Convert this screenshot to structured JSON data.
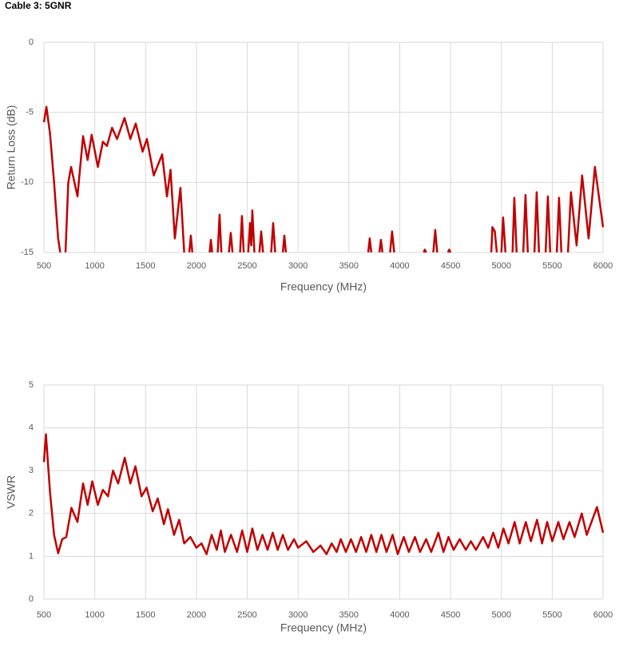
{
  "title": "Cable 3: 5GNR",
  "chart_data": [
    {
      "type": "line",
      "xlabel": "Frequency (MHz)",
      "ylabel": "Return Loss (dB)",
      "xlim": [
        500,
        6000
      ],
      "xticks": [
        500,
        1000,
        1500,
        2000,
        2500,
        3000,
        3500,
        4000,
        4500,
        5000,
        5500,
        6000
      ],
      "ylim": [
        -15,
        0
      ],
      "yticks": [
        0,
        -5,
        -10,
        -15
      ],
      "grid": true,
      "x": [
        500,
        524,
        560,
        600,
        640,
        660,
        680,
        712,
        740,
        767,
        830,
        885,
        930,
        970,
        1030,
        1080,
        1120,
        1170,
        1220,
        1293,
        1350,
        1403,
        1470,
        1513,
        1580,
        1663,
        1710,
        1745,
        1788,
        1843,
        1880,
        1900,
        1930,
        1945,
        1960,
        2000,
        2130,
        2142,
        2155,
        2180,
        2210,
        2228,
        2245,
        2280,
        2320,
        2338,
        2355,
        2400,
        2430,
        2448,
        2465,
        2490,
        2510,
        2527,
        2540,
        2550,
        2570,
        2600,
        2620,
        2637,
        2655,
        2700,
        2735,
        2755,
        2775,
        2820,
        2850,
        2865,
        2880,
        3300,
        3690,
        3705,
        3720,
        3760,
        3800,
        3815,
        3830,
        3870,
        3905,
        3925,
        3945,
        4100,
        4235,
        4247,
        4260,
        4300,
        4330,
        4349,
        4368,
        4420,
        4475,
        4487,
        4500,
        4700,
        4900,
        4912,
        4935,
        4955,
        4980,
        5000,
        5017,
        5040,
        5080,
        5110,
        5127,
        5150,
        5190,
        5215,
        5237,
        5260,
        5300,
        5325,
        5347,
        5370,
        5410,
        5435,
        5457,
        5480,
        5520,
        5545,
        5567,
        5590,
        5630,
        5655,
        5684,
        5740,
        5794,
        5858,
        5920,
        6000
      ],
      "series": [
        {
          "name": "Return Loss",
          "color": "#c00000",
          "values": [
            -5.7,
            -4.6,
            -6.5,
            -10,
            -14,
            -15,
            null,
            -15,
            -10,
            -8.9,
            -11,
            -6.7,
            -8.4,
            -6.6,
            -8.9,
            -7.1,
            -7.4,
            -6.1,
            -6.9,
            -5.4,
            -6.9,
            -5.8,
            -7.8,
            -6.9,
            -9.5,
            -8.0,
            -11.0,
            -9.1,
            -14.0,
            -10.4,
            -15,
            null,
            -15,
            -13.8,
            -15,
            null,
            -15,
            -14.1,
            -15,
            null,
            -15,
            -12.3,
            -15,
            null,
            -15,
            -13.6,
            -15,
            null,
            -15,
            -12.4,
            -15,
            null,
            -15,
            -12.9,
            -14.5,
            -12.0,
            -15,
            null,
            -15,
            -13.5,
            -15,
            null,
            -15,
            -12.9,
            -15,
            null,
            -15,
            -13.8,
            -15,
            null,
            -15,
            -14.0,
            -15,
            null,
            -15,
            -14.1,
            -15,
            null,
            -15,
            -13.5,
            -15,
            null,
            -15,
            -14.8,
            -15,
            null,
            -15,
            -13.4,
            -15,
            null,
            -15,
            -14.8,
            -15,
            null,
            -15,
            -13.2,
            -13.5,
            -15,
            null,
            -15,
            -12.5,
            -15,
            null,
            -15,
            -11.1,
            -15,
            null,
            -15,
            -10.9,
            -15,
            null,
            -15,
            -10.7,
            -15,
            null,
            -15,
            -11.0,
            -15,
            null,
            -15,
            -11.1,
            -15,
            null,
            -15,
            -10.7,
            -14.5,
            -9.5,
            -14.0,
            -8.9,
            -13.2
          ]
        }
      ]
    },
    {
      "type": "line",
      "xlabel": "Frequency (MHz)",
      "ylabel": "VSWR",
      "xlim": [
        500,
        6000
      ],
      "xticks": [
        500,
        1000,
        1500,
        2000,
        2500,
        3000,
        3500,
        4000,
        4500,
        5000,
        5500,
        6000
      ],
      "ylim": [
        0,
        5
      ],
      "yticks": [
        0,
        1,
        2,
        3,
        4,
        5
      ],
      "grid": true,
      "x": [
        500,
        520,
        560,
        600,
        640,
        680,
        720,
        770,
        830,
        885,
        930,
        975,
        1030,
        1080,
        1130,
        1180,
        1230,
        1295,
        1350,
        1400,
        1460,
        1510,
        1570,
        1620,
        1680,
        1720,
        1780,
        1830,
        1880,
        1940,
        2000,
        2050,
        2100,
        2150,
        2200,
        2240,
        2280,
        2340,
        2400,
        2450,
        2500,
        2550,
        2600,
        2650,
        2700,
        2750,
        2800,
        2850,
        2900,
        2960,
        3000,
        3080,
        3150,
        3220,
        3280,
        3330,
        3380,
        3420,
        3470,
        3520,
        3570,
        3620,
        3670,
        3720,
        3770,
        3820,
        3870,
        3930,
        3980,
        4040,
        4090,
        4150,
        4200,
        4260,
        4310,
        4380,
        4430,
        4480,
        4530,
        4590,
        4650,
        4700,
        4750,
        4820,
        4870,
        4920,
        4970,
        5020,
        5070,
        5130,
        5180,
        5240,
        5290,
        5350,
        5400,
        5450,
        5500,
        5560,
        5610,
        5670,
        5720,
        5790,
        5840,
        5940,
        6000
      ],
      "series": [
        {
          "name": "VSWR",
          "color": "#c00000",
          "values": [
            3.2,
            3.85,
            2.5,
            1.5,
            1.07,
            1.4,
            1.45,
            2.13,
            1.8,
            2.7,
            2.2,
            2.75,
            2.2,
            2.55,
            2.4,
            3.0,
            2.7,
            3.3,
            2.7,
            3.1,
            2.4,
            2.6,
            2.05,
            2.35,
            1.75,
            2.1,
            1.5,
            1.85,
            1.3,
            1.45,
            1.2,
            1.3,
            1.05,
            1.5,
            1.15,
            1.6,
            1.1,
            1.5,
            1.1,
            1.6,
            1.1,
            1.65,
            1.15,
            1.5,
            1.15,
            1.55,
            1.15,
            1.5,
            1.15,
            1.4,
            1.2,
            1.35,
            1.1,
            1.25,
            1.05,
            1.3,
            1.1,
            1.4,
            1.1,
            1.4,
            1.1,
            1.45,
            1.1,
            1.5,
            1.1,
            1.5,
            1.1,
            1.5,
            1.05,
            1.45,
            1.1,
            1.45,
            1.1,
            1.4,
            1.1,
            1.55,
            1.1,
            1.45,
            1.15,
            1.4,
            1.15,
            1.35,
            1.15,
            1.45,
            1.2,
            1.55,
            1.2,
            1.65,
            1.3,
            1.8,
            1.3,
            1.8,
            1.35,
            1.85,
            1.3,
            1.8,
            1.35,
            1.8,
            1.4,
            1.8,
            1.45,
            2.0,
            1.5,
            2.15,
            1.55
          ]
        }
      ]
    }
  ]
}
